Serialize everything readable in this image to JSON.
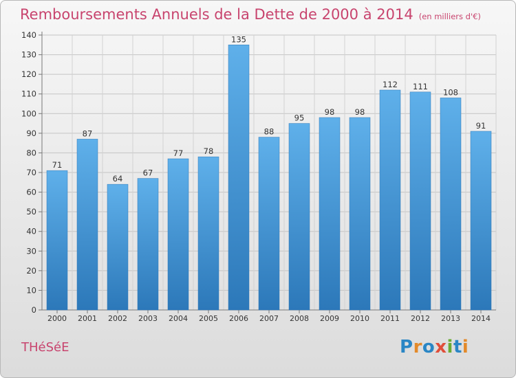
{
  "chart_data": {
    "type": "bar",
    "title": "Remboursements Annuels de la Dette de 2000 à 2014",
    "subtitle": "(en milliers d'€)",
    "categories": [
      "2000",
      "2001",
      "2002",
      "2003",
      "2004",
      "2005",
      "2006",
      "2007",
      "2008",
      "2009",
      "2010",
      "2011",
      "2012",
      "2013",
      "2014"
    ],
    "values": [
      71,
      87,
      64,
      67,
      77,
      78,
      135,
      88,
      95,
      98,
      98,
      112,
      111,
      108,
      91
    ],
    "ylim": [
      0,
      140
    ],
    "yticks": [
      0,
      10,
      20,
      30,
      40,
      50,
      60,
      70,
      80,
      90,
      100,
      110,
      120,
      130,
      140
    ],
    "grid": true,
    "bar_color": "#4a9ad6"
  },
  "footer": {
    "commune": "THéSéE",
    "brand": "Proxiti",
    "brand_letter_colors": [
      "#2a86c5",
      "#e38a2a",
      "#2a86c5",
      "#e04e3a",
      "#6aab34",
      "#2a86c5",
      "#e38a2a"
    ]
  }
}
